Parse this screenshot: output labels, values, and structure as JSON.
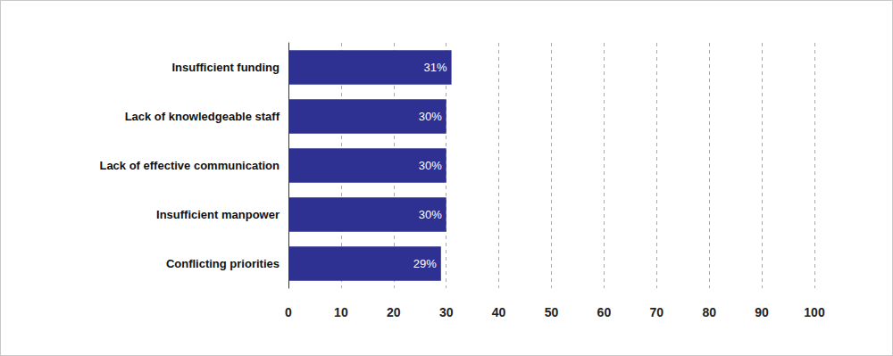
{
  "chart_data": {
    "type": "bar",
    "orientation": "horizontal",
    "categories": [
      "Insufficient funding",
      "Lack of knowledgeable staff",
      "Lack of effective communication",
      "Insufficient manpower",
      "Conflicting priorities"
    ],
    "values": [
      31,
      30,
      30,
      30,
      29
    ],
    "value_labels": [
      "31%",
      "30%",
      "30%",
      "30%",
      "29%"
    ],
    "data_labels": true,
    "color": "#2e3192",
    "xlim": [
      0,
      100
    ],
    "xticks": [
      0,
      10,
      20,
      30,
      40,
      50,
      60,
      70,
      80,
      90,
      100
    ],
    "grid": true
  }
}
